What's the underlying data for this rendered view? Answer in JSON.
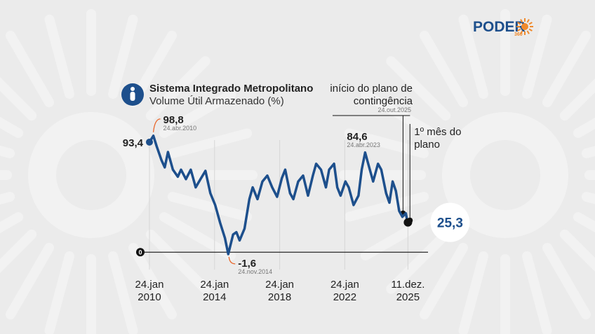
{
  "brand": {
    "name": "PODER",
    "sub": "360"
  },
  "chart_data": {
    "type": "line",
    "title": "Sistema Integrado Metropolitano",
    "subtitle": "Volume Útil Armazenado (%)",
    "color": "#1d4f8c",
    "x": [
      2010.06,
      2010.3,
      2010.5,
      2010.8,
      2011.0,
      2011.2,
      2011.5,
      2011.8,
      2012.0,
      2012.3,
      2012.6,
      2012.9,
      2013.2,
      2013.5,
      2013.8,
      2014.1,
      2014.4,
      2014.7,
      2014.9,
      2015.2,
      2015.4,
      2015.6,
      2015.9,
      2016.2,
      2016.4,
      2016.7,
      2017.0,
      2017.3,
      2017.6,
      2017.9,
      2018.2,
      2018.4,
      2018.7,
      2018.9,
      2019.2,
      2019.5,
      2019.8,
      2020.1,
      2020.3,
      2020.6,
      2020.9,
      2021.1,
      2021.4,
      2021.6,
      2021.8,
      2022.1,
      2022.3,
      2022.6,
      2022.9,
      2023.1,
      2023.31,
      2023.5,
      2023.8,
      2024.1,
      2024.3,
      2024.6,
      2024.8,
      2025.0,
      2025.2,
      2025.4,
      2025.6,
      2025.81,
      2025.89,
      2025.94
    ],
    "values": [
      93.4,
      98.8,
      90,
      78,
      72,
      85,
      70,
      64,
      70,
      62,
      70,
      55,
      62,
      69,
      50,
      40,
      25,
      12,
      -1.6,
      15,
      17,
      10,
      20,
      45,
      55,
      45,
      60,
      65,
      55,
      47,
      63,
      70,
      50,
      45,
      60,
      65,
      48,
      65,
      75,
      70,
      55,
      70,
      75,
      55,
      48,
      60,
      55,
      40,
      48,
      70,
      84.6,
      75,
      60,
      75,
      70,
      50,
      42,
      60,
      52,
      35,
      30,
      33,
      27,
      25.3
    ],
    "xlim": [
      2009.5,
      2026.5
    ],
    "xticks": [
      {
        "value": 2010.06,
        "label": "24.jan 2010"
      },
      {
        "value": 2014.06,
        "label": "24.jan 2014"
      },
      {
        "value": 2018.06,
        "label": "24.jan 2018"
      },
      {
        "value": 2022.06,
        "label": "24.jan 2022"
      },
      {
        "value": 2025.94,
        "label": "11.dez. 2025"
      }
    ],
    "ylim": [
      -10,
      110
    ],
    "yticks": [
      0
    ],
    "annotations": [
      {
        "x": 2010.06,
        "value": 93.4,
        "label": "93,4"
      },
      {
        "x": 2010.3,
        "value": 98.8,
        "label": "98,8",
        "date": "24.abr.2010"
      },
      {
        "x": 2014.9,
        "value": -1.6,
        "label": "-1,6",
        "date": "24.nov.2014"
      },
      {
        "x": 2023.31,
        "value": 84.6,
        "label": "84,6",
        "date": "24.abr.2023"
      },
      {
        "x": 2025.94,
        "value": 25.3,
        "label": "25,3"
      }
    ],
    "plan": [
      {
        "x": 2025.81,
        "value": 33,
        "label": "início do plano de contingência",
        "date": "24.out.2025"
      },
      {
        "x": 2025.89,
        "value": 27,
        "label": "1º mês do plano"
      }
    ]
  }
}
